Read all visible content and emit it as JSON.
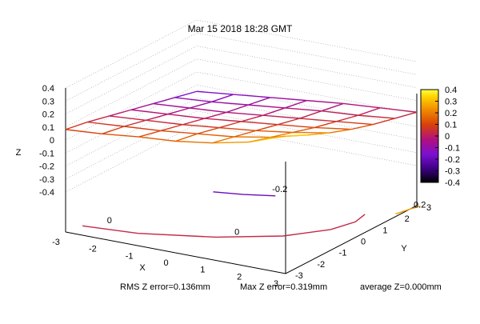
{
  "chart_data": {
    "type": "surface3d",
    "title": "Mar 15 2018 18:28 GMT",
    "xlabel": "X",
    "ylabel": "Y",
    "zlabel": "Z",
    "xlim": [
      -3,
      3
    ],
    "ylim": [
      -3,
      3
    ],
    "zlim": [
      -0.4,
      0.4
    ],
    "x_ticks": [
      "-3",
      "-2",
      "-1",
      "0",
      "1",
      "2",
      "3"
    ],
    "y_ticks": [
      "-3",
      "-2",
      "-1",
      "0",
      "1",
      "2",
      "3"
    ],
    "z_ticks": [
      "0.4",
      "0.3",
      "0.2",
      "0.1",
      "0",
      "-0.1",
      "-0.2",
      "-0.3",
      "-0.4"
    ],
    "colorbar": {
      "range": [
        -0.4,
        0.4
      ],
      "ticks": [
        "0.4",
        "0.3",
        "0.2",
        "0.1",
        "0",
        "-0.1",
        "-0.2",
        "-0.3",
        "-0.4"
      ],
      "colors": [
        "#000000",
        "#3a0080",
        "#7a10d0",
        "#b01080",
        "#d8400a",
        "#f08a00",
        "#ffd200",
        "#ffff40"
      ]
    },
    "grid": true,
    "surface_x": [
      -3,
      -2,
      -1,
      0,
      1,
      2,
      3
    ],
    "surface_y": [
      -3,
      -2,
      -1,
      0,
      1,
      2,
      3
    ],
    "surface_z": [
      [
        0.05,
        0.02,
        -0.02,
        -0.06,
        -0.1,
        -0.14,
        -0.18
      ],
      [
        0.07,
        0.04,
        0.0,
        -0.04,
        -0.08,
        -0.12,
        -0.15
      ],
      [
        0.1,
        0.06,
        0.02,
        -0.02,
        -0.06,
        -0.09,
        -0.12
      ],
      [
        0.12,
        0.09,
        0.05,
        0.01,
        -0.03,
        -0.06,
        -0.09
      ],
      [
        0.16,
        0.12,
        0.08,
        0.04,
        0.0,
        -0.03,
        -0.06
      ],
      [
        0.22,
        0.17,
        0.12,
        0.07,
        0.03,
        -0.01,
        -0.04
      ],
      [
        0.32,
        0.24,
        0.17,
        0.11,
        0.06,
        0.02,
        -0.02
      ]
    ],
    "contour_labels": [
      "-0.2",
      "0",
      "0",
      "0.2"
    ]
  },
  "footer": {
    "rms": "RMS Z error=0.136mm",
    "max": "Max Z error=0.319mm",
    "avg": "average Z=0.000mm"
  }
}
